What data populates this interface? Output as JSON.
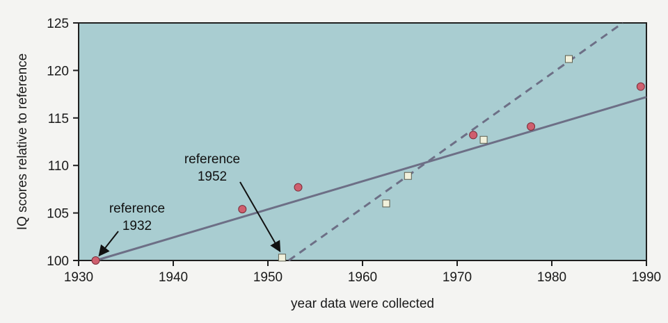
{
  "colors": {
    "plot_background": "#a9cdd1",
    "trend_line": "#6d6f86",
    "circle_fill": "#cf5f6e",
    "square_fill": "#f1f1dc"
  },
  "chart_data": {
    "type": "scatter",
    "title": "",
    "xlabel": "year data were collected",
    "ylabel": "IQ scores relative to reference",
    "xlim": [
      1930,
      1990
    ],
    "ylim": [
      100,
      125
    ],
    "x_ticks": [
      1930,
      1940,
      1950,
      1960,
      1970,
      1980,
      1990
    ],
    "y_ticks": [
      100,
      105,
      110,
      115,
      120,
      125
    ],
    "grid": false,
    "series": [
      {
        "marker": "circle",
        "points": [
          {
            "x": 1931.8,
            "y": 100.0
          },
          {
            "x": 1947.3,
            "y": 105.4
          },
          {
            "x": 1953.2,
            "y": 107.7
          },
          {
            "x": 1971.7,
            "y": 113.2
          },
          {
            "x": 1977.8,
            "y": 114.1
          },
          {
            "x": 1989.4,
            "y": 118.3
          }
        ],
        "trend": {
          "style": "solid",
          "from": {
            "x": 1931.8,
            "y": 100.0
          },
          "to": {
            "x": 1990,
            "y": 117.2
          }
        }
      },
      {
        "marker": "square",
        "points": [
          {
            "x": 1951.5,
            "y": 100.3
          },
          {
            "x": 1962.5,
            "y": 106.0
          },
          {
            "x": 1964.8,
            "y": 108.9
          },
          {
            "x": 1972.8,
            "y": 112.7
          },
          {
            "x": 1981.8,
            "y": 121.2
          }
        ],
        "trend": {
          "style": "dashed",
          "from": {
            "x": 1952.2,
            "y": 100.0
          },
          "to": {
            "x": 1987.5,
            "y": 125.0
          }
        }
      }
    ],
    "annotations": [
      {
        "lines": [
          "reference",
          "1932"
        ],
        "target": {
          "x": 1931.8,
          "y": 100.0
        }
      },
      {
        "lines": [
          "reference",
          "1952"
        ],
        "target": {
          "x": 1951.5,
          "y": 100.3
        }
      }
    ]
  }
}
